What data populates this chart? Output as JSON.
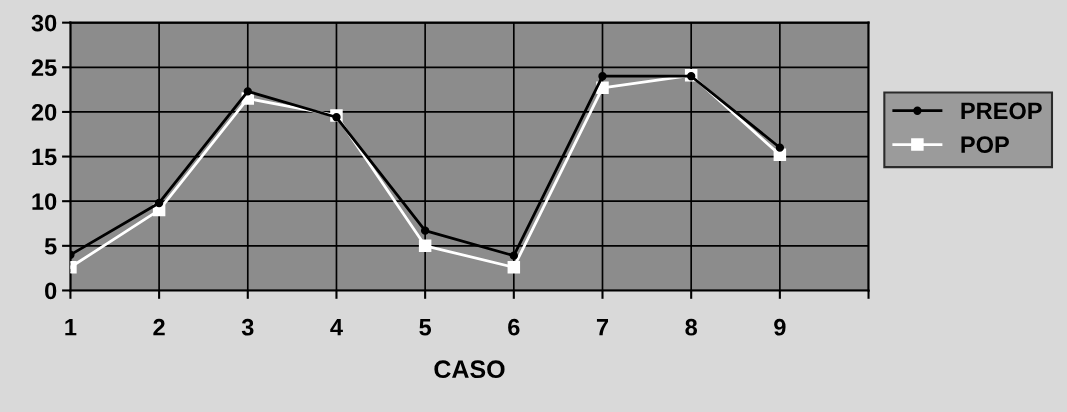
{
  "chart_data": {
    "type": "line",
    "xlabel": "CASO",
    "x": [
      1,
      2,
      3,
      4,
      5,
      6,
      7,
      8,
      9
    ],
    "series": [
      {
        "name": "PREOP",
        "color": "#000000",
        "marker": "circle",
        "values": [
          4,
          9.8,
          22.3,
          19.4,
          6.7,
          3.9,
          24,
          24,
          16
        ]
      },
      {
        "name": "POP",
        "color": "#ffffff",
        "marker": "square",
        "values": [
          2.6,
          9,
          21.5,
          19.6,
          5,
          2.6,
          22.7,
          24.1,
          15.2
        ]
      }
    ],
    "xlim": [
      1,
      10
    ],
    "xticks": [
      1,
      2,
      3,
      4,
      5,
      6,
      7,
      8,
      9,
      {
        "value": 10,
        "label": null
      }
    ],
    "ylim": [
      0,
      30
    ],
    "yticks": [
      0,
      5,
      10,
      15,
      20,
      25,
      30
    ],
    "grid": true,
    "legend": "right",
    "line_style": "solid"
  }
}
